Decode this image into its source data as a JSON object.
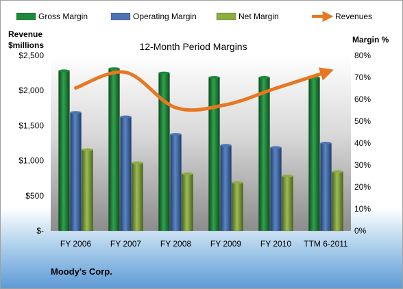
{
  "chart_data": {
    "type": "bar",
    "title": "12-Month Period Margins",
    "categories": [
      "FY 2006",
      "FY 2007",
      "FY 2008",
      "FY 2009",
      "FY 2010",
      "TTM 6-2011"
    ],
    "series": [
      {
        "name": "Gross Margin",
        "axis": "right",
        "unit": "%",
        "values": [
          73,
          74,
          72,
          70,
          70,
          70
        ],
        "color": "#1f8a3a"
      },
      {
        "name": "Operating Margin",
        "axis": "right",
        "unit": "%",
        "values": [
          54,
          52,
          44,
          39,
          38,
          40
        ],
        "color": "#4a74b3"
      },
      {
        "name": "Net Margin",
        "axis": "right",
        "unit": "%",
        "values": [
          37,
          31,
          26,
          22,
          25,
          27
        ],
        "color": "#8cad3f"
      },
      {
        "name": "Revenues",
        "type": "line",
        "axis": "left",
        "unit": "$millions",
        "values": [
          2037,
          2259,
          1755,
          1797,
          2032,
          2261
        ],
        "color": "#e87722"
      }
    ],
    "left_axis": {
      "label_line1": "Revenue",
      "label_line2": "$millions",
      "ylim": [
        0,
        2500
      ],
      "ticks": [
        "$-",
        "$500",
        "$1,000",
        "$1,500",
        "$2,000",
        "$2,500"
      ]
    },
    "right_axis": {
      "label": "Margin %",
      "ylim": [
        0,
        80
      ],
      "ticks": [
        "0%",
        "10%",
        "20%",
        "30%",
        "40%",
        "50%",
        "60%",
        "70%",
        "80%"
      ]
    },
    "legend": {
      "position": "top",
      "entries": [
        "Gross Margin",
        "Operating Margin",
        "Net Margin",
        "Revenues"
      ]
    },
    "footer": "Moody's Corp.",
    "grid": false
  }
}
